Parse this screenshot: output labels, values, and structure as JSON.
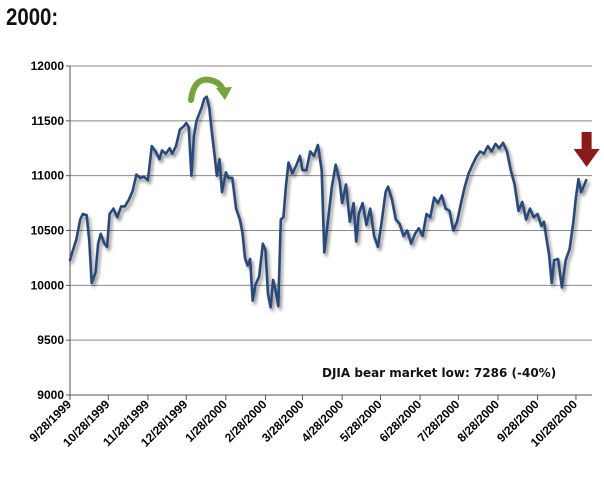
{
  "page": {
    "heading": "2000:"
  },
  "chart_data": {
    "type": "line",
    "title": "",
    "xlabel": "",
    "ylabel": "",
    "ylim": [
      9000,
      12000
    ],
    "yticks": [
      9000,
      9500,
      10000,
      10500,
      11000,
      11500,
      12000
    ],
    "xtick_labels": [
      "9/28/1999",
      "10/28/1999",
      "11/28/1999",
      "12/28/1999",
      "1/28/2000",
      "2/28/2000",
      "3/28/2000",
      "4/28/2000",
      "5/28/2000",
      "6/28/2000",
      "7/28/2000",
      "8/28/2000",
      "9/28/2000",
      "10/28/2000"
    ],
    "grid": "horizontal",
    "legend": "none",
    "line_color": "#2b4a7a",
    "annotation": "DJIA bear market low: 7286  (-40%)",
    "markers": [
      {
        "name": "curved-arrow-icon",
        "at": "1/14/2000",
        "color": "#76a33a"
      },
      {
        "name": "down-arrow-icon",
        "at": "11/3/2000",
        "color": "#8b1a1a"
      }
    ],
    "series": [
      {
        "values": [
          [
            "9/28/1999",
            10230
          ],
          [
            "9/30/1999",
            10310
          ],
          [
            "10/3/1999",
            10420
          ],
          [
            "10/6/1999",
            10600
          ],
          [
            "10/8/1999",
            10650
          ],
          [
            "10/11/1999",
            10640
          ],
          [
            "10/13/1999",
            10420
          ],
          [
            "10/15/1999",
            10020
          ],
          [
            "10/18/1999",
            10120
          ],
          [
            "10/20/1999",
            10380
          ],
          [
            "10/22/1999",
            10470
          ],
          [
            "10/25/1999",
            10380
          ],
          [
            "10/27/1999",
            10350
          ],
          [
            "10/29/1999",
            10650
          ],
          [
            "11/1/1999",
            10700
          ],
          [
            "11/4/1999",
            10620
          ],
          [
            "11/7/1999",
            10720
          ],
          [
            "11/10/1999",
            10720
          ],
          [
            "11/13/1999",
            10780
          ],
          [
            "11/16/1999",
            10860
          ],
          [
            "11/19/1999",
            11010
          ],
          [
            "11/22/1999",
            10980
          ],
          [
            "11/25/1999",
            10990
          ],
          [
            "11/28/1999",
            10960
          ],
          [
            "12/1/1999",
            11270
          ],
          [
            "12/4/1999",
            11220
          ],
          [
            "12/7/1999",
            11150
          ],
          [
            "12/9/1999",
            11230
          ],
          [
            "12/12/1999",
            11200
          ],
          [
            "12/15/1999",
            11250
          ],
          [
            "12/17/1999",
            11200
          ],
          [
            "12/20/1999",
            11270
          ],
          [
            "12/23/1999",
            11420
          ],
          [
            "12/26/1999",
            11450
          ],
          [
            "12/28/1999",
            11480
          ],
          [
            "12/30/1999",
            11440
          ],
          [
            "1/1/2000",
            11000
          ],
          [
            "1/3/2000",
            11360
          ],
          [
            "1/5/2000",
            11500
          ],
          [
            "1/7/2000",
            11560
          ],
          [
            "1/9/2000",
            11620
          ],
          [
            "1/11/2000",
            11700
          ],
          [
            "1/13/2000",
            11720
          ],
          [
            "1/15/2000",
            11620
          ],
          [
            "1/17/2000",
            11400
          ],
          [
            "1/19/2000",
            11200
          ],
          [
            "1/21/2000",
            11000
          ],
          [
            "1/23/2000",
            11150
          ],
          [
            "1/25/2000",
            10850
          ],
          [
            "1/28/2000",
            11030
          ],
          [
            "1/30/2000",
            10980
          ],
          [
            "2/2/2000",
            10980
          ],
          [
            "2/5/2000",
            10700
          ],
          [
            "2/8/2000",
            10600
          ],
          [
            "2/10/2000",
            10480
          ],
          [
            "2/12/2000",
            10250
          ],
          [
            "2/14/2000",
            10180
          ],
          [
            "2/16/2000",
            10240
          ],
          [
            "2/18/2000",
            9860
          ],
          [
            "2/20/2000",
            10000
          ],
          [
            "2/23/2000",
            10080
          ],
          [
            "2/26/2000",
            10380
          ],
          [
            "2/28/2000",
            10320
          ],
          [
            "3/1/2000",
            9920
          ],
          [
            "3/3/2000",
            9800
          ],
          [
            "3/5/2000",
            10050
          ],
          [
            "3/7/2000",
            9950
          ],
          [
            "3/9/2000",
            9810
          ],
          [
            "3/11/2000",
            10600
          ],
          [
            "3/13/2000",
            10620
          ],
          [
            "3/15/2000",
            10900
          ],
          [
            "3/17/2000",
            11120
          ],
          [
            "3/20/2000",
            11020
          ],
          [
            "3/23/2000",
            11090
          ],
          [
            "3/26/2000",
            11180
          ],
          [
            "3/28/2000",
            11050
          ],
          [
            "3/31/2000",
            11050
          ],
          [
            "4/3/2000",
            11220
          ],
          [
            "4/6/2000",
            11180
          ],
          [
            "4/9/2000",
            11280
          ],
          [
            "4/12/2000",
            11050
          ],
          [
            "4/14/2000",
            10300
          ],
          [
            "4/17/2000",
            10600
          ],
          [
            "4/20/2000",
            10900
          ],
          [
            "4/23/2000",
            11100
          ],
          [
            "4/26/2000",
            10950
          ],
          [
            "4/28/2000",
            10750
          ],
          [
            "5/1/2000",
            10920
          ],
          [
            "5/4/2000",
            10580
          ],
          [
            "5/7/2000",
            10750
          ],
          [
            "5/9/2000",
            10400
          ],
          [
            "5/11/2000",
            10650
          ],
          [
            "5/14/2000",
            10750
          ],
          [
            "5/17/2000",
            10550
          ],
          [
            "5/20/2000",
            10700
          ],
          [
            "5/23/2000",
            10450
          ],
          [
            "5/26/2000",
            10350
          ],
          [
            "5/29/2000",
            10580
          ],
          [
            "6/1/2000",
            10850
          ],
          [
            "6/3/2000",
            10900
          ],
          [
            "6/6/2000",
            10780
          ],
          [
            "6/9/2000",
            10600
          ],
          [
            "6/12/2000",
            10560
          ],
          [
            "6/15/2000",
            10450
          ],
          [
            "6/18/2000",
            10500
          ],
          [
            "6/21/2000",
            10380
          ],
          [
            "6/24/2000",
            10470
          ],
          [
            "6/27/2000",
            10520
          ],
          [
            "6/30/2000",
            10450
          ],
          [
            "7/3/2000",
            10650
          ],
          [
            "7/6/2000",
            10620
          ],
          [
            "7/9/2000",
            10800
          ],
          [
            "7/12/2000",
            10750
          ],
          [
            "7/15/2000",
            10820
          ],
          [
            "7/18/2000",
            10700
          ],
          [
            "7/21/2000",
            10680
          ],
          [
            "7/24/2000",
            10500
          ],
          [
            "7/27/2000",
            10580
          ],
          [
            "7/30/2000",
            10750
          ],
          [
            "8/2/2000",
            10900
          ],
          [
            "8/5/2000",
            11020
          ],
          [
            "8/8/2000",
            11100
          ],
          [
            "8/11/2000",
            11170
          ],
          [
            "8/14/2000",
            11220
          ],
          [
            "8/17/2000",
            11200
          ],
          [
            "8/20/2000",
            11270
          ],
          [
            "8/23/2000",
            11220
          ],
          [
            "8/26/2000",
            11290
          ],
          [
            "8/29/2000",
            11250
          ],
          [
            "9/1/2000",
            11300
          ],
          [
            "9/4/2000",
            11220
          ],
          [
            "9/7/2000",
            11050
          ],
          [
            "9/10/2000",
            10920
          ],
          [
            "9/13/2000",
            10680
          ],
          [
            "9/16/2000",
            10760
          ],
          [
            "9/19/2000",
            10600
          ],
          [
            "9/22/2000",
            10700
          ],
          [
            "9/25/2000",
            10620
          ],
          [
            "9/28/2000",
            10650
          ],
          [
            "10/1/2000",
            10540
          ],
          [
            "10/3/2000",
            10580
          ],
          [
            "10/5/2000",
            10420
          ],
          [
            "10/7/2000",
            10280
          ],
          [
            "10/9/2000",
            10020
          ],
          [
            "10/11/2000",
            10230
          ],
          [
            "10/14/2000",
            10240
          ],
          [
            "10/17/2000",
            9980
          ],
          [
            "10/20/2000",
            10230
          ],
          [
            "10/23/2000",
            10330
          ],
          [
            "10/26/2000",
            10580
          ],
          [
            "10/28/2000",
            10800
          ],
          [
            "10/30/2000",
            10970
          ],
          [
            "11/1/2000",
            10850
          ],
          [
            "11/3/2000",
            10900
          ],
          [
            "11/5/2000",
            10960
          ]
        ]
      }
    ]
  }
}
